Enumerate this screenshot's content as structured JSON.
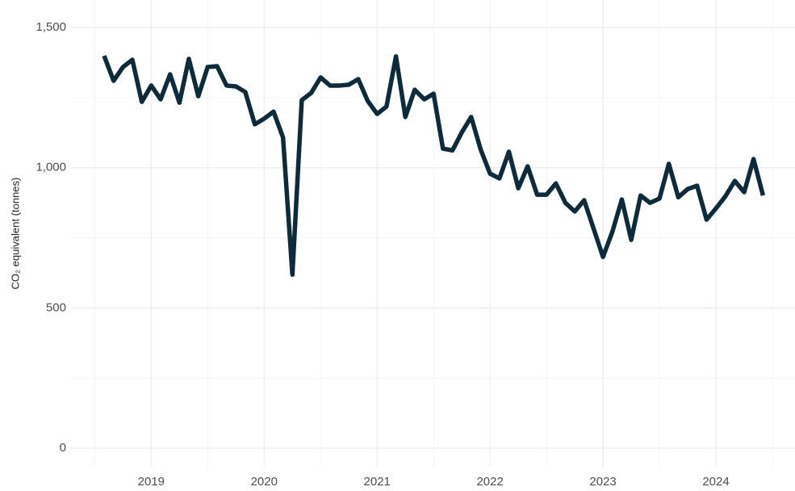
{
  "chart_data": {
    "type": "line",
    "ylabel": "CO₂ equivalent (tonnes)",
    "x": [
      2018.583,
      2018.667,
      2018.75,
      2018.833,
      2018.917,
      2019,
      2019.083,
      2019.167,
      2019.25,
      2019.333,
      2019.417,
      2019.5,
      2019.583,
      2019.667,
      2019.75,
      2019.833,
      2019.917,
      2020,
      2020.083,
      2020.167,
      2020.25,
      2020.333,
      2020.417,
      2020.5,
      2020.583,
      2020.667,
      2020.75,
      2020.833,
      2020.917,
      2021,
      2021.083,
      2021.167,
      2021.25,
      2021.333,
      2021.417,
      2021.5,
      2021.583,
      2021.667,
      2021.75,
      2021.833,
      2021.917,
      2022,
      2022.083,
      2022.167,
      2022.25,
      2022.333,
      2022.417,
      2022.5,
      2022.583,
      2022.667,
      2022.75,
      2022.833,
      2022.917,
      2023,
      2023.083,
      2023.167,
      2023.25,
      2023.333,
      2023.417,
      2023.5,
      2023.583,
      2023.667,
      2023.75,
      2023.833,
      2023.917,
      2024,
      2024.083,
      2024.167,
      2024.25,
      2024.333,
      2024.417
    ],
    "series": [
      {
        "color": "#0d2b3a",
        "values": [
          1399,
          1310,
          1359,
          1385,
          1235,
          1293,
          1244,
          1333,
          1232,
          1388,
          1255,
          1359,
          1362,
          1293,
          1290,
          1270,
          1155,
          1175,
          1200,
          1108,
          619,
          1241,
          1267,
          1322,
          1293,
          1293,
          1296,
          1316,
          1238,
          1192,
          1218,
          1397,
          1181,
          1278,
          1244,
          1264,
          1068,
          1062,
          1126,
          1181,
          1065,
          979,
          962,
          1057,
          927,
          1005,
          904,
          904,
          944,
          875,
          844,
          884,
          783,
          682,
          772,
          887,
          743,
          901,
          875,
          890,
          1014,
          895,
          924,
          936,
          815,
          855,
          898,
          953,
          913,
          1031,
          901
        ]
      }
    ],
    "xlim": [
      2018.29,
      2024.7
    ],
    "xticks": [
      2019,
      2020,
      2021,
      2022,
      2023,
      2024
    ],
    "xminor": [
      2018.5,
      2019.5,
      2020.5,
      2021.5,
      2022.5,
      2023.5,
      2024.5
    ],
    "ylim": [
      -66,
      1598
    ],
    "yticks": [
      0,
      500,
      {
        "value": 1000,
        "label": "1,000"
      },
      {
        "value": 1500,
        "label": "1,500"
      }
    ],
    "yminor": [
      250,
      750,
      1250
    ],
    "grid": true
  }
}
